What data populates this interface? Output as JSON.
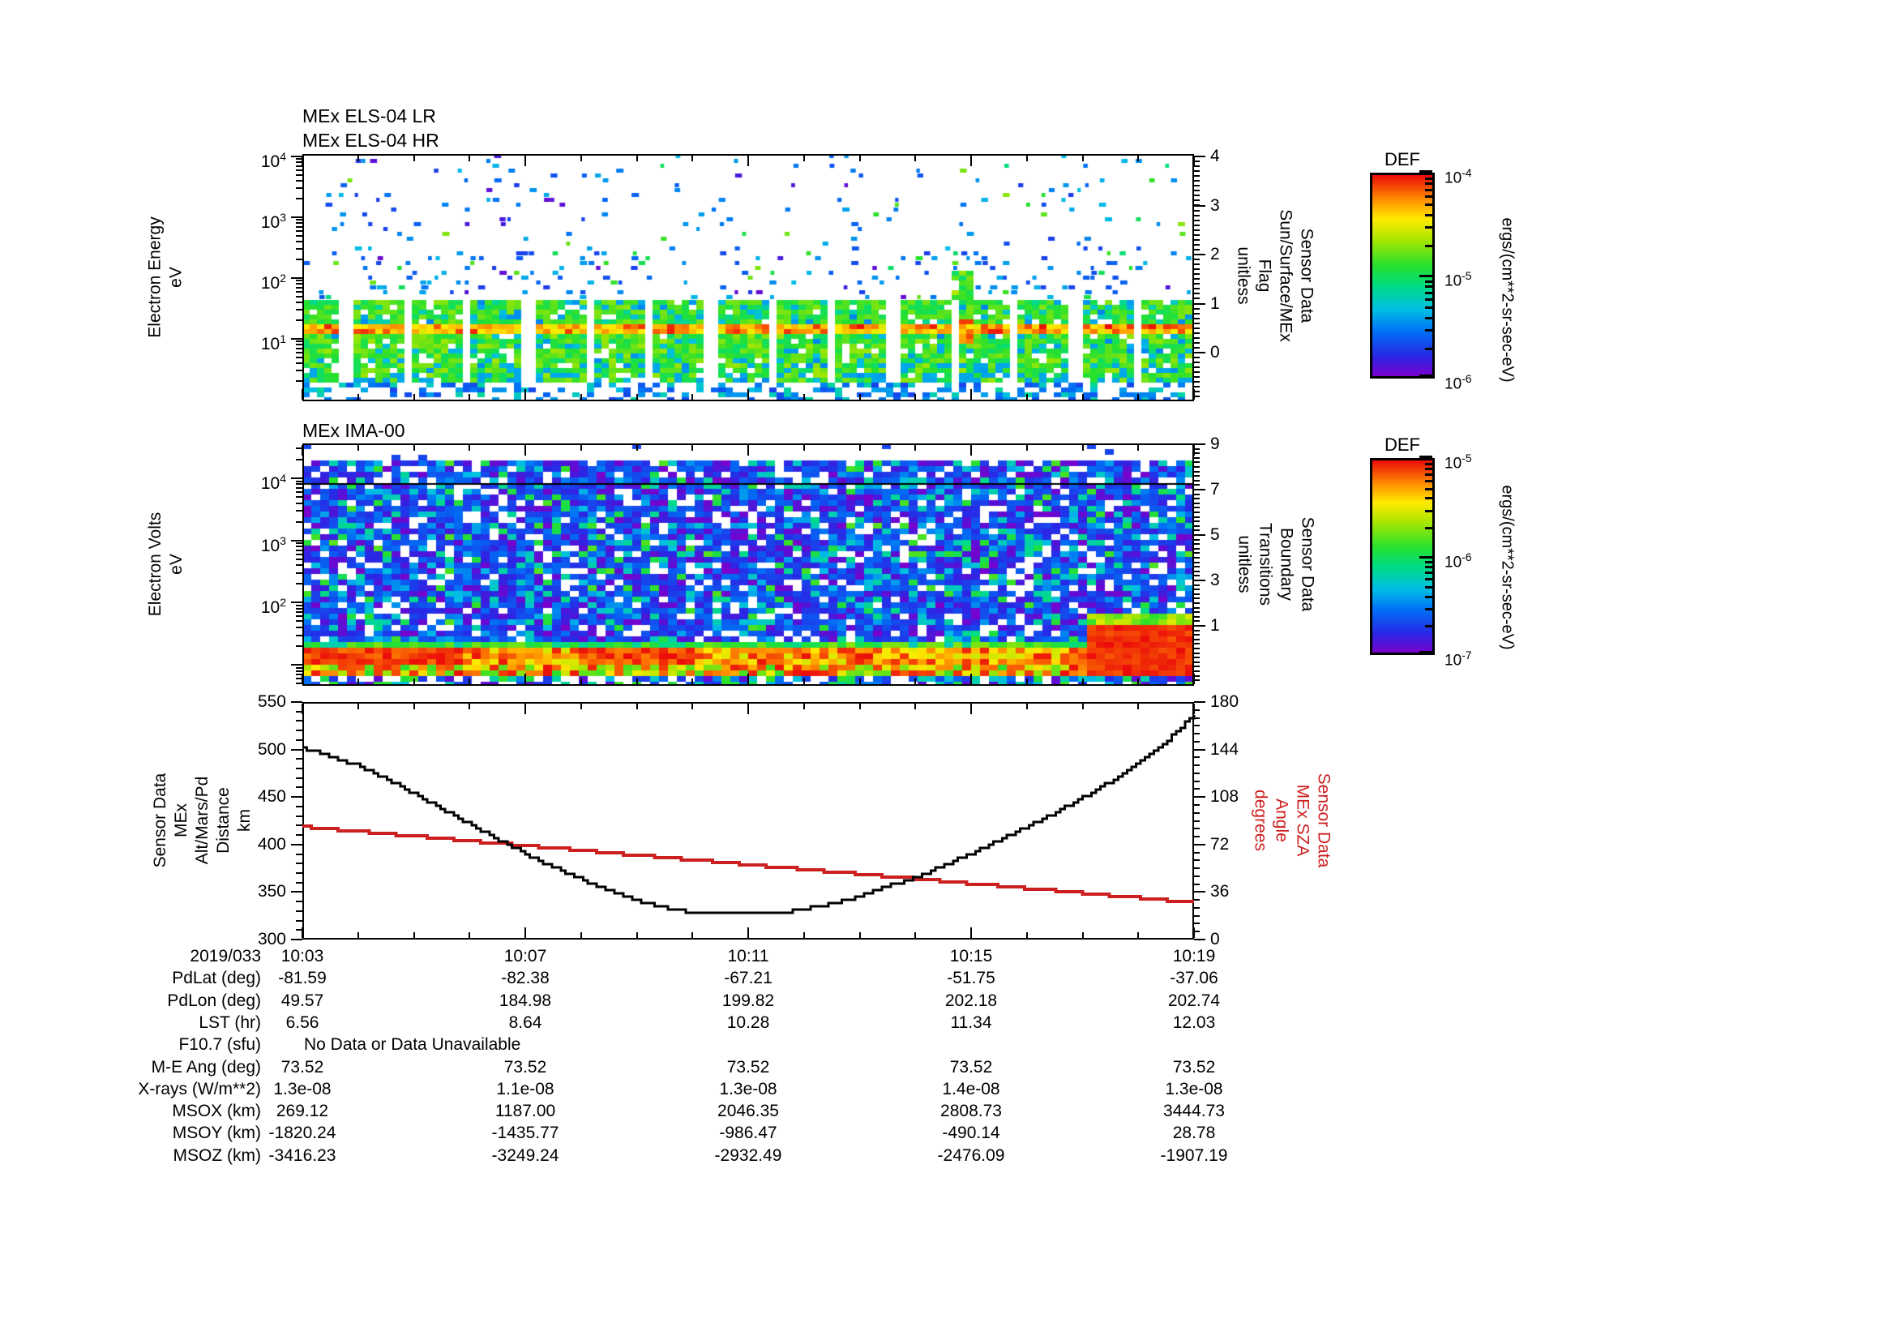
{
  "panels": {
    "els": {
      "title1": "MEx ELS-04 LR",
      "title2": "MEx ELS-04 HR",
      "ylabel": "Electron Energy\neV",
      "yticks": [
        "10^4",
        "10^3",
        "10^2",
        "10^1"
      ],
      "right_axis": {
        "label": "Sensor Data\nSun/Surface/MEx\nFlag\nunitless",
        "ticks": [
          "4",
          "3",
          "2",
          "1",
          "0"
        ]
      }
    },
    "ima": {
      "title": "MEx IMA-00",
      "ylabel": "Electron Volts\neV",
      "yticks": [
        "10^4",
        "10^3",
        "10^2"
      ],
      "right_axis": {
        "label": "Sensor Data\nBoundary\nTransitions\nunitless",
        "ticks": [
          "9",
          "7",
          "5",
          "3",
          "1"
        ]
      }
    },
    "line": {
      "ylabel_left": "Sensor Data\nMEx Alt/Mars/Pd\nDistance\nkm",
      "left_ticks": [
        "550",
        "500",
        "450",
        "400",
        "350",
        "300"
      ],
      "ylabel_right": "Sensor Data\nMEx SZA\nAngle\ndegrees",
      "right_ticks": [
        "180",
        "144",
        "108",
        "72",
        "36",
        "0"
      ],
      "right_label_color": "#cc1f1f"
    }
  },
  "time_axis": {
    "labels": [
      "10:03",
      "10:07",
      "10:11",
      "10:15",
      "10:19"
    ]
  },
  "colorbars": [
    {
      "title": "DEF",
      "ticks": [
        "10^-4",
        "10^-5",
        "10^-6"
      ],
      "unit": "ergs/(cm**2-sr-sec-eV)"
    },
    {
      "title": "DEF",
      "ticks": [
        "10^-5",
        "10^-6",
        "10^-7"
      ],
      "unit": "ergs/(cm**2-sr-sec-eV)"
    }
  ],
  "table": {
    "rows": [
      {
        "label": "2019/033",
        "values": [
          "10:03",
          "10:07",
          "10:11",
          "10:15",
          "10:19"
        ]
      },
      {
        "label": "PdLat (deg)",
        "values": [
          "-81.59",
          "-82.38",
          "-67.21",
          "-51.75",
          "-37.06"
        ]
      },
      {
        "label": "PdLon (deg)",
        "values": [
          "49.57",
          "184.98",
          "199.82",
          "202.18",
          "202.74"
        ]
      },
      {
        "label": "LST (hr)",
        "values": [
          "6.56",
          "8.64",
          "10.28",
          "11.34",
          "12.03"
        ]
      },
      {
        "label": "F10.7 (sfu)",
        "values": [],
        "note": "No Data or Data Unavailable"
      },
      {
        "label": "M-E Ang (deg)",
        "values": [
          "73.52",
          "73.52",
          "73.52",
          "73.52",
          "73.52"
        ]
      },
      {
        "label": "X-rays (W/m**2)",
        "values": [
          "1.3e-08",
          "1.1e-08",
          "1.3e-08",
          "1.4e-08",
          "1.3e-08"
        ]
      },
      {
        "label": "MSOX (km)",
        "values": [
          "269.12",
          "1187.00",
          "2046.35",
          "2808.73",
          "3444.73"
        ]
      },
      {
        "label": "MSOY (km)",
        "values": [
          "-1820.24",
          "-1435.77",
          "-986.47",
          "-490.14",
          "28.78"
        ]
      },
      {
        "label": "MSOZ (km)",
        "values": [
          "-3416.23",
          "-3249.24",
          "-2932.49",
          "-2476.09",
          "-1907.19"
        ]
      }
    ]
  },
  "colors": {
    "line_black": "#000000",
    "line_red": "#cc1f1f",
    "colormap_stops": [
      [
        0.0,
        122,
        0,
        204
      ],
      [
        0.1,
        40,
        40,
        230
      ],
      [
        0.22,
        0,
        110,
        245
      ],
      [
        0.33,
        0,
        190,
        230
      ],
      [
        0.45,
        0,
        220,
        130
      ],
      [
        0.55,
        40,
        225,
        45
      ],
      [
        0.68,
        170,
        230,
        0
      ],
      [
        0.78,
        255,
        235,
        0
      ],
      [
        0.88,
        255,
        140,
        0
      ],
      [
        1.0,
        235,
        10,
        10
      ]
    ]
  },
  "chart_data": [
    {
      "type": "heatmap",
      "title": "MEx ELS-04 LR / MEx ELS-04 HR electron energy spectrogram",
      "xlabel": "time (2019/033 10:03 - 10:19)",
      "ylabel": "Electron Energy eV (log, ~1 to 10^4)",
      "colorbar_range": [
        "1e-6",
        "1e-4"
      ],
      "colorbar_unit": "ergs/(cm**2-sr-sec-eV)",
      "features": {
        "sparse_blue_noise_above_eV": 45,
        "dense_green_band_eV": [
          2,
          45
        ],
        "yellow_red_stripe_eV": [
          11,
          17
        ],
        "segment_gap_spacing_min": 1.1,
        "green_streak_time": "10:14.7",
        "green_streak_max_eV": 130
      },
      "right_flag_axis": {
        "label": "Sun/Surface/MEx Flag",
        "range": [
          0,
          4
        ]
      }
    },
    {
      "type": "heatmap",
      "title": "MEx IMA-00 ion spectrogram",
      "xlabel": "time (2019/033 10:03 - 10:19)",
      "ylabel": "Electron Volts eV (log, ~3 to 3.6e4)",
      "colorbar_range": [
        "1e-7",
        "1e-5"
      ],
      "colorbar_unit": "ergs/(cm**2-sr-sec-eV)",
      "features": {
        "blue_purple_mosaic_eV": [
          25,
          20000
        ],
        "red_band_eV": [
          7,
          20
        ],
        "green_fringe_eV": [
          19,
          26
        ],
        "black_marker_line_eV": 8000,
        "intense_red_blob_after": "10:16.6",
        "white_above_eV": 21000
      },
      "right_axis": {
        "label": "Boundary Transitions",
        "range": [
          1,
          9
        ]
      }
    },
    {
      "type": "line",
      "title": "MEx altitude and solar zenith angle vs time",
      "x_minutes_from_1003": [
        0,
        0.5,
        1,
        1.5,
        2,
        2.5,
        3,
        3.5,
        4,
        4.5,
        5,
        5.5,
        6,
        6.5,
        7,
        7.5,
        8,
        8.5,
        9,
        9.5,
        10,
        10.5,
        11,
        11.5,
        12,
        12.5,
        13,
        13.5,
        14,
        14.5,
        15,
        15.5,
        16
      ],
      "x_tick_labels": [
        "10:03",
        "10:07",
        "10:11",
        "10:15",
        "10:19"
      ],
      "series": [
        {
          "name": "MEx Alt/Mars/Pd Distance (km)",
          "color": "#000000",
          "axis": "left",
          "ylim": [
            300,
            550
          ],
          "values": [
            502,
            492,
            483,
            469,
            453,
            437,
            421,
            405,
            390,
            376,
            363,
            351,
            341,
            333,
            328,
            327,
            327,
            328,
            332,
            338,
            346,
            356,
            366,
            378,
            391,
            405,
            419,
            434,
            450,
            467,
            486,
            509,
            537
          ]
        },
        {
          "name": "MEx SZA Angle (degrees)",
          "color": "#cc1f1f",
          "axis": "right",
          "ylim": [
            0,
            180
          ],
          "values": [
            85.5,
            83.7,
            81.9,
            80.1,
            78.3,
            76.5,
            74.7,
            72.9,
            71.1,
            69.3,
            67.5,
            65.7,
            63.9,
            62.1,
            60.3,
            58.5,
            56.7,
            54.9,
            53.1,
            51.4,
            49.6,
            47.8,
            46,
            44.2,
            42.4,
            40.6,
            38.8,
            37,
            35.2,
            33.4,
            31.6,
            29.8,
            28
          ]
        }
      ],
      "grid": false,
      "style": "staircase"
    }
  ]
}
